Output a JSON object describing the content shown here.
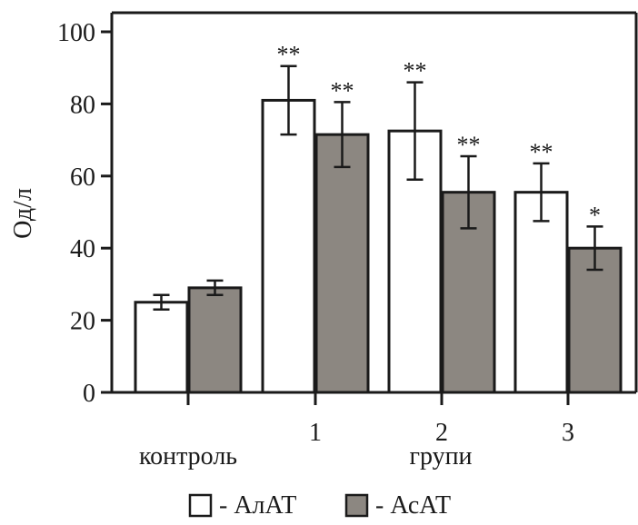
{
  "chart_data": {
    "type": "bar",
    "ylabel": "Од/л",
    "ylim": [
      0,
      100
    ],
    "yticks": [
      0,
      20,
      40,
      60,
      80,
      100
    ],
    "categories": [
      "контроль",
      "1",
      "2",
      "3"
    ],
    "group_label": "групи",
    "series": [
      {
        "name": "АлАТ",
        "color": "#ffffff",
        "values": [
          25,
          81,
          72.5,
          55.5
        ],
        "err": [
          2,
          9.5,
          13.5,
          8
        ],
        "significance": [
          "",
          "**",
          "**",
          "**"
        ]
      },
      {
        "name": "АсАТ",
        "color": "#8c8781",
        "values": [
          29,
          71.5,
          55.5,
          40
        ],
        "err": [
          2,
          9,
          10,
          6
        ],
        "significance": [
          "",
          "**",
          "**",
          "*"
        ]
      }
    ],
    "legend": {
      "position": "bottom",
      "entries": [
        "- АлАТ",
        "- АсАТ"
      ]
    },
    "grid": false
  }
}
